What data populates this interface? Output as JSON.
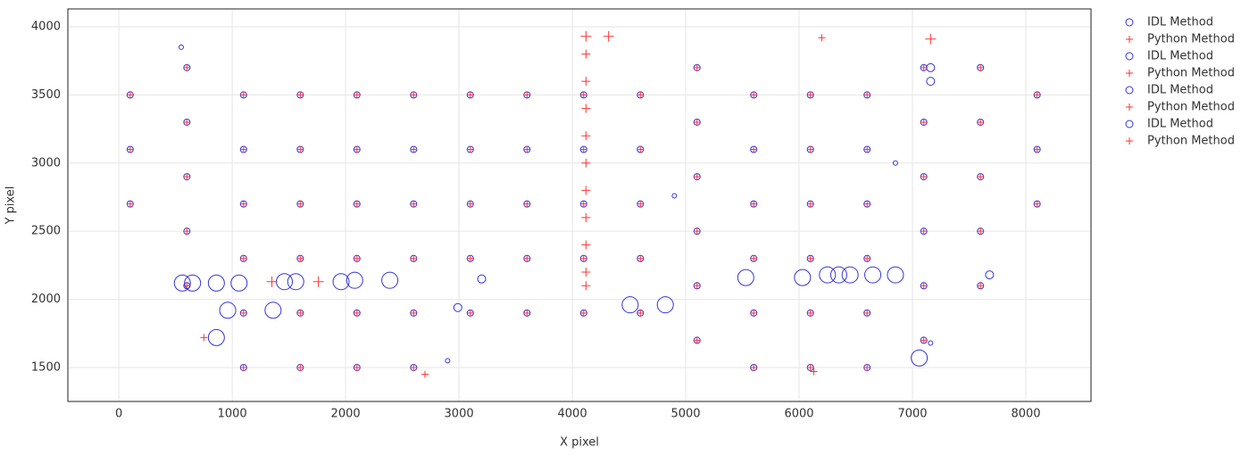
{
  "chart_data": {
    "type": "scatter",
    "xlabel": "X pixel",
    "ylabel": "Y pixel",
    "xlim": [
      -450,
      8575
    ],
    "ylim": [
      1251,
      4131
    ],
    "xticks": [
      0,
      1000,
      2000,
      3000,
      4000,
      5000,
      6000,
      7000,
      8000
    ],
    "yticks": [
      1500,
      2000,
      2500,
      3000,
      3500,
      4000
    ],
    "grid": true,
    "legend": "right",
    "series": [
      {
        "name": "IDL Method",
        "color": "#3333dd",
        "symbol": "circle-open",
        "x": [
          100,
          100,
          100,
          600,
          600,
          600,
          600,
          600,
          1100,
          1100,
          1100,
          1100,
          1100,
          1100,
          1600,
          1600,
          1600,
          1600,
          1600,
          1600,
          2100,
          2100,
          2100,
          2100,
          2100,
          2100,
          2600,
          2600,
          2600,
          2600,
          2600,
          2600,
          3100,
          3100,
          3100,
          3100,
          3100,
          3600,
          3600,
          3600,
          3600,
          3600,
          4100,
          4100,
          4100,
          4100,
          4100,
          4600,
          4600,
          4600,
          4600,
          4600,
          5100,
          5100,
          5100,
          5100,
          5100,
          5100,
          5600,
          5600,
          5600,
          5600,
          5600,
          5600,
          6100,
          6100,
          6100,
          6100,
          6100,
          6100,
          6600,
          6600,
          6600,
          6600,
          6600,
          6600,
          7100,
          7100,
          7100,
          7100,
          7100,
          7100,
          7600,
          7600,
          7600,
          7600,
          7600,
          8100,
          8100,
          8100
        ],
        "values": [
          2700,
          3100,
          3500,
          2100,
          2500,
          2900,
          3300,
          3700,
          1500,
          1900,
          2300,
          2700,
          3100,
          3500,
          1500,
          1900,
          2300,
          2700,
          3100,
          3500,
          1500,
          1900,
          2300,
          2700,
          3100,
          3500,
          1500,
          1900,
          2300,
          2700,
          3100,
          3500,
          1900,
          2300,
          2700,
          3100,
          3500,
          1900,
          2300,
          2700,
          3100,
          3500,
          1900,
          2300,
          2700,
          3100,
          3500,
          1900,
          2300,
          2700,
          3100,
          3500,
          1700,
          2100,
          2500,
          2900,
          3300,
          3700,
          1500,
          1900,
          2300,
          2700,
          3100,
          3500,
          1500,
          1900,
          2300,
          2700,
          3100,
          3500,
          1500,
          1900,
          2300,
          2700,
          3100,
          3500,
          1700,
          2100,
          2500,
          2900,
          3300,
          3700,
          2100,
          2500,
          2900,
          3300,
          3700,
          2700,
          3100,
          3500
        ]
      },
      {
        "name": "Python Method",
        "color": "#ff3333",
        "symbol": "cross",
        "x": [
          100,
          100,
          100,
          600,
          600,
          600,
          600,
          600,
          1100,
          1100,
          1100,
          1100,
          1100,
          1100,
          1600,
          1600,
          1600,
          1600,
          1600,
          1600,
          2100,
          2100,
          2100,
          2100,
          2100,
          2100,
          2600,
          2600,
          2600,
          2600,
          2600,
          2600,
          3100,
          3100,
          3100,
          3100,
          3100,
          3600,
          3600,
          3600,
          3600,
          3600,
          4100,
          4100,
          4100,
          4100,
          4100,
          4600,
          4600,
          4600,
          4600,
          4600,
          5100,
          5100,
          5100,
          5100,
          5100,
          5100,
          5600,
          5600,
          5600,
          5600,
          5600,
          5600,
          6100,
          6100,
          6100,
          6100,
          6100,
          6100,
          6600,
          6600,
          6600,
          6600,
          6600,
          6600,
          7100,
          7100,
          7100,
          7100,
          7100,
          7100,
          7600,
          7600,
          7600,
          7600,
          7600,
          8100,
          8100,
          8100
        ],
        "values": [
          2700,
          3100,
          3500,
          2100,
          2500,
          2900,
          3300,
          3700,
          1500,
          1900,
          2300,
          2700,
          3100,
          3500,
          1500,
          1900,
          2300,
          2700,
          3100,
          3500,
          1500,
          1900,
          2300,
          2700,
          3100,
          3500,
          1500,
          1900,
          2300,
          2700,
          3100,
          3500,
          1900,
          2300,
          2700,
          3100,
          3500,
          1900,
          2300,
          2700,
          3100,
          3500,
          1900,
          2300,
          2700,
          3100,
          3500,
          1900,
          2300,
          2700,
          3100,
          3500,
          1700,
          2100,
          2500,
          2900,
          3300,
          3700,
          1500,
          1900,
          2300,
          2700,
          3100,
          3500,
          1500,
          1900,
          2300,
          2700,
          3100,
          3500,
          1500,
          1900,
          2300,
          2700,
          3100,
          3500,
          1700,
          2100,
          2500,
          2900,
          3300,
          3700,
          2100,
          2500,
          2900,
          3300,
          3700,
          2700,
          3100,
          3500
        ]
      },
      {
        "name": "IDL Method",
        "color": "#3333dd",
        "symbol": "circle-open",
        "x": [
          3200,
          2990,
          7160,
          7160,
          7680
        ],
        "values": [
          2150,
          1940,
          3700,
          3600,
          2180
        ]
      },
      {
        "name": "Python Method",
        "color": "#ff3333",
        "symbol": "cross",
        "x": [
          4120,
          4120,
          4120,
          4120,
          4120,
          4120,
          4120,
          4120,
          4120,
          4120
        ],
        "values": [
          3800,
          3600,
          3400,
          3200,
          3000,
          2800,
          2600,
          2400,
          2200,
          2100
        ]
      },
      {
        "name": "IDL Method",
        "color": "#3333dd",
        "symbol": "circle-open",
        "x": [
          560,
          650,
          860,
          1060,
          960,
          860,
          1360,
          1460,
          1560,
          1960,
          2080,
          2390,
          4510,
          4820,
          5530,
          6030,
          6250,
          6350,
          6450,
          6650,
          6850,
          7060
        ],
        "values": [
          2120,
          2120,
          2120,
          2120,
          1920,
          1720,
          1920,
          2130,
          2130,
          2130,
          2140,
          2140,
          1960,
          1960,
          2160,
          2160,
          2180,
          2180,
          2180,
          2180,
          2180,
          1570
        ]
      },
      {
        "name": "Python Method",
        "color": "#ff3333",
        "symbol": "cross",
        "x": [
          1350,
          1760,
          4120,
          4320,
          7160
        ],
        "values": [
          2130,
          2130,
          3930,
          3930,
          3910
        ]
      },
      {
        "name": "IDL Method",
        "color": "#3333dd",
        "symbol": "circle-open",
        "x": [
          550,
          2900,
          4900,
          6850,
          7160
        ],
        "values": [
          3850,
          1550,
          2760,
          3000,
          1680
        ]
      },
      {
        "name": "Python Method",
        "color": "#ff3333",
        "symbol": "cross",
        "x": [
          2700,
          750,
          6130,
          6200
        ],
        "values": [
          1450,
          1720,
          1470,
          3920
        ]
      }
    ]
  }
}
